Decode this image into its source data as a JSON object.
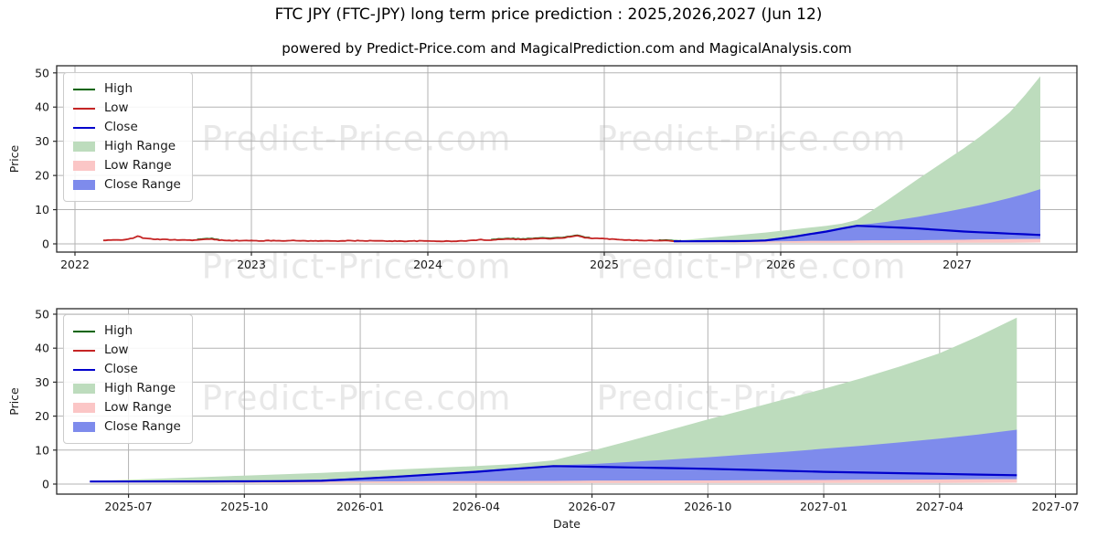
{
  "figure": {
    "title": "FTC JPY (FTC-JPY) long term price prediction : 2025,2026,2027 (Jun 12)",
    "subtitle": "powered by Predict-Price.com and MagicalPrediction.com and MagicalAnalysis.com",
    "watermark": "Predict-Price.com"
  },
  "colors": {
    "high_line": "#006400",
    "low_line": "#c52525",
    "close_line": "#0000cc",
    "high_fill": "#bddcbd",
    "low_fill": "#fbc6c6",
    "close_fill": "#7e8bec",
    "grid": "#b3b3b3",
    "spine": "#2a2a2a",
    "tick_text": "#1a1a1a",
    "legend_text": "#1a1a1a"
  },
  "legend": {
    "items": [
      {
        "label": "High",
        "swatch": "line",
        "color_key": "high_line"
      },
      {
        "label": "Low",
        "swatch": "line",
        "color_key": "low_line"
      },
      {
        "label": "Close",
        "swatch": "line",
        "color_key": "close_line"
      },
      {
        "label": "High Range",
        "swatch": "patch",
        "color_key": "high_fill"
      },
      {
        "label": "Low Range",
        "swatch": "patch",
        "color_key": "low_fill"
      },
      {
        "label": "Close Range",
        "swatch": "patch",
        "color_key": "close_fill"
      }
    ]
  },
  "chart_data": [
    {
      "type": "line",
      "title": "FTC JPY history + long term prediction",
      "xlabel": "Date",
      "ylabel": "Price",
      "ylim": [
        -2.5,
        52
      ],
      "y_ticks": [
        0,
        10,
        20,
        30,
        40,
        50
      ],
      "x_ticks": [
        "2022",
        "2023",
        "2024",
        "2025",
        "2026",
        "2027"
      ],
      "grid": true,
      "legend_position": "upper-left",
      "historical_low": [
        [
          2022.16,
          1.0
        ],
        [
          2022.22,
          1.1
        ],
        [
          2022.28,
          1.25
        ],
        [
          2022.33,
          1.6
        ],
        [
          2022.36,
          2.4
        ],
        [
          2022.39,
          1.6
        ],
        [
          2022.45,
          1.35
        ],
        [
          2022.52,
          1.25
        ],
        [
          2022.6,
          1.15
        ],
        [
          2022.68,
          1.1
        ],
        [
          2022.74,
          1.3
        ],
        [
          2022.77,
          1.45
        ],
        [
          2022.8,
          1.15
        ],
        [
          2022.88,
          1.0
        ],
        [
          2022.95,
          0.95
        ],
        [
          2023.05,
          0.9
        ],
        [
          2023.15,
          0.95
        ],
        [
          2023.25,
          0.95
        ],
        [
          2023.35,
          0.85
        ],
        [
          2023.45,
          0.85
        ],
        [
          2023.55,
          0.9
        ],
        [
          2023.65,
          0.9
        ],
        [
          2023.75,
          0.85
        ],
        [
          2023.85,
          0.8
        ],
        [
          2023.95,
          0.85
        ],
        [
          2024.05,
          0.8
        ],
        [
          2024.15,
          0.75
        ],
        [
          2024.25,
          1.0
        ],
        [
          2024.3,
          1.2
        ],
        [
          2024.35,
          1.1
        ],
        [
          2024.4,
          1.3
        ],
        [
          2024.45,
          1.5
        ],
        [
          2024.5,
          1.35
        ],
        [
          2024.55,
          1.3
        ],
        [
          2024.6,
          1.5
        ],
        [
          2024.65,
          1.6
        ],
        [
          2024.7,
          1.5
        ],
        [
          2024.75,
          1.7
        ],
        [
          2024.8,
          2.0
        ],
        [
          2024.85,
          2.35
        ],
        [
          2024.88,
          1.9
        ],
        [
          2024.92,
          1.7
        ],
        [
          2024.96,
          1.6
        ],
        [
          2025.0,
          1.5
        ],
        [
          2025.08,
          1.3
        ],
        [
          2025.16,
          1.1
        ],
        [
          2025.24,
          1.0
        ],
        [
          2025.32,
          0.95
        ],
        [
          2025.4,
          0.85
        ],
        [
          2025.44,
          0.8
        ]
      ],
      "high_spike_segments": [
        [
          2022.68,
          2022.82
        ],
        [
          2024.35,
          2024.92
        ],
        [
          2025.3,
          2025.44
        ]
      ]
    },
    {
      "type": "area",
      "title": "FTC JPY forecast detail Jun 2025 - Jun 2027",
      "xlabel": "Date",
      "ylabel": "Price",
      "ylim": [
        -2.5,
        52
      ],
      "y_ticks": [
        0,
        10,
        20,
        30,
        40,
        50
      ],
      "x_ticks": [
        "2025-07",
        "2025-10",
        "2026-01",
        "2026-04",
        "2026-07",
        "2026-10",
        "2027-01",
        "2027-04",
        "2027-07"
      ],
      "grid": true,
      "legend_position": "upper-left",
      "forecast": {
        "dates": [
          "2025-06",
          "2025-07",
          "2025-08",
          "2025-09",
          "2025-10",
          "2025-11",
          "2025-12",
          "2026-01",
          "2026-02",
          "2026-03",
          "2026-04",
          "2026-05",
          "2026-06",
          "2026-07",
          "2026-08",
          "2026-09",
          "2026-10",
          "2026-11",
          "2026-12",
          "2027-01",
          "2027-02",
          "2027-03",
          "2027-04",
          "2027-05",
          "2027-06"
        ],
        "close": [
          0.75,
          0.75,
          0.77,
          0.79,
          0.81,
          0.86,
          0.98,
          1.55,
          2.2,
          2.9,
          3.6,
          4.5,
          5.3,
          5.1,
          4.9,
          4.7,
          4.5,
          4.2,
          3.9,
          3.6,
          3.4,
          3.2,
          3.0,
          2.8,
          2.6
        ],
        "close_max": [
          0.8,
          0.85,
          0.9,
          0.95,
          1.0,
          1.1,
          1.3,
          1.85,
          2.5,
          3.2,
          3.95,
          4.7,
          5.5,
          5.9,
          6.5,
          7.2,
          7.9,
          8.7,
          9.5,
          10.4,
          11.3,
          12.3,
          13.4,
          14.6,
          16.0
        ],
        "high_max": [
          0.9,
          1.25,
          1.7,
          2.1,
          2.5,
          2.9,
          3.3,
          3.8,
          4.3,
          4.8,
          5.3,
          5.9,
          7.0,
          9.8,
          12.8,
          15.9,
          19.0,
          22.0,
          25.0,
          28.0,
          31.2,
          34.7,
          38.5,
          43.5,
          49.0
        ],
        "low_max": [
          0.7,
          0.68,
          0.66,
          0.65,
          0.66,
          0.68,
          0.7,
          0.75,
          0.8,
          0.85,
          0.88,
          0.9,
          0.95,
          1.0,
          1.02,
          1.05,
          1.08,
          1.1,
          1.15,
          1.2,
          1.25,
          1.3,
          1.35,
          1.4,
          1.45
        ],
        "low_min": [
          0.45,
          0.42,
          0.4,
          0.38,
          0.36,
          0.35,
          0.33,
          0.32,
          0.3,
          0.3,
          0.3,
          0.3,
          0.3,
          0.3,
          0.3,
          0.3,
          0.3,
          0.3,
          0.3,
          0.32,
          0.33,
          0.35,
          0.36,
          0.38,
          0.4
        ]
      }
    }
  ]
}
